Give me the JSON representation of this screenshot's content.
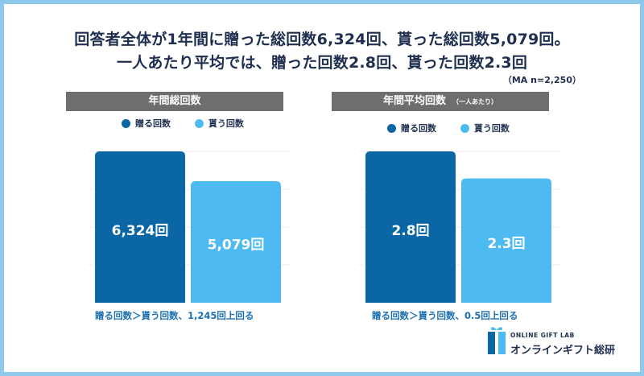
{
  "headline": {
    "line1": "回答者全体が1年間に贈った総回数6,324回、貰った総回数5,079回。",
    "line2": "一人あたり平均では、贈った回数2.8回、貰った回数2.3回",
    "base": "（MA n=2,250）"
  },
  "colors": {
    "give": "#0b66a6",
    "receive": "#4dbbf2",
    "header_bg": "#6e6e6e",
    "note": "#1b6fb0",
    "frame": "#8ec9eb"
  },
  "legend": {
    "give": "贈る回数",
    "receive": "貰う回数"
  },
  "logo": {
    "top": "ONLINE GIFT LAB",
    "main": "オンラインギフト総研"
  },
  "chart_data": [
    {
      "type": "bar",
      "title": "年間総回数",
      "subtitle": "",
      "categories": [
        "贈る回数",
        "貰う回数"
      ],
      "values": [
        6324,
        5079
      ],
      "labels": [
        "6,324回",
        "5,079回"
      ],
      "ylim": [
        0,
        6324
      ],
      "note": "贈る回数＞貰う回数、1,245回上回る"
    },
    {
      "type": "bar",
      "title": "年間平均回数",
      "subtitle": "（一人あたり）",
      "categories": [
        "贈る回数",
        "貰う回数"
      ],
      "values": [
        2.8,
        2.3
      ],
      "labels": [
        "2.8回",
        "2.3回"
      ],
      "ylim": [
        0,
        2.8
      ],
      "note": "贈る回数＞貰う回数、0.5回上回る"
    }
  ]
}
